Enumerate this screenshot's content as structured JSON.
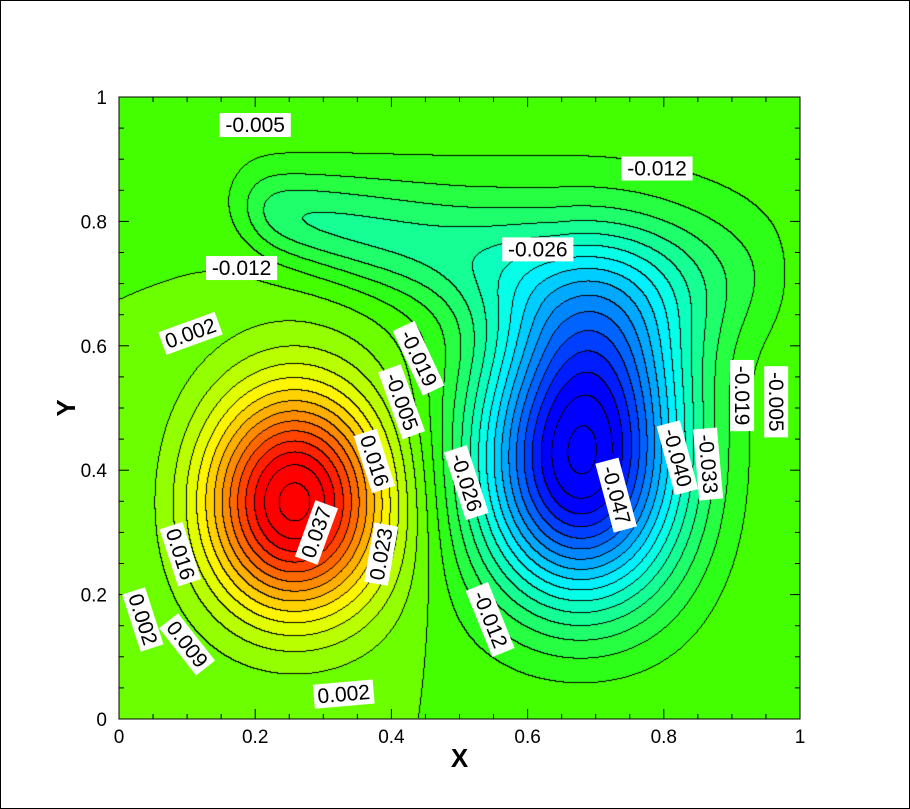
{
  "chart_data": {
    "type": "contour",
    "xlabel": "X",
    "ylabel": "Y",
    "xlim": [
      0,
      1
    ],
    "ylim": [
      0,
      1
    ],
    "x_ticks": [
      "0",
      "0.2",
      "0.4",
      "0.6",
      "0.8",
      "1"
    ],
    "y_ticks": [
      "0",
      "0.2",
      "0.4",
      "0.6",
      "0.8",
      "1"
    ],
    "colormap": [
      "#0000ff",
      "#00ffff",
      "#33ff00",
      "#ffff00",
      "#ff0000"
    ],
    "value_range": [
      -0.05,
      0.04
    ],
    "contour_step": 0.0035,
    "extrema": [
      {
        "kind": "max",
        "x": 0.245,
        "y": 0.335,
        "value": 0.037
      },
      {
        "kind": "min",
        "x": 0.69,
        "y": 0.39,
        "value": -0.047
      },
      {
        "kind": "tongue",
        "x": 0.19,
        "y": 0.825,
        "value": -0.022
      }
    ],
    "labels": [
      {
        "text": "-0.005",
        "x": 0.2,
        "y": 0.955,
        "angle": 0
      },
      {
        "text": "-0.012",
        "x": 0.79,
        "y": 0.885,
        "angle": 0
      },
      {
        "text": "-0.026",
        "x": 0.615,
        "y": 0.755,
        "angle": 0
      },
      {
        "text": "-0.012",
        "x": 0.18,
        "y": 0.725,
        "angle": 0
      },
      {
        "text": "0.002",
        "x": 0.105,
        "y": 0.62,
        "angle": -20
      },
      {
        "text": "-0.019",
        "x": 0.44,
        "y": 0.58,
        "angle": 65
      },
      {
        "text": "-0.005",
        "x": 0.415,
        "y": 0.51,
        "angle": 70
      },
      {
        "text": "0.016",
        "x": 0.375,
        "y": 0.415,
        "angle": 72
      },
      {
        "text": "-0.026",
        "x": 0.51,
        "y": 0.38,
        "angle": 72
      },
      {
        "text": "0.037",
        "x": 0.29,
        "y": 0.3,
        "angle": -70
      },
      {
        "text": "0.023",
        "x": 0.385,
        "y": 0.265,
        "angle": -80
      },
      {
        "text": "0.016",
        "x": 0.09,
        "y": 0.265,
        "angle": 72
      },
      {
        "text": "0.002",
        "x": 0.035,
        "y": 0.16,
        "angle": 72
      },
      {
        "text": "0.009",
        "x": 0.1,
        "y": 0.12,
        "angle": 52
      },
      {
        "text": "0.002",
        "x": 0.33,
        "y": 0.04,
        "angle": -5
      },
      {
        "text": "-0.012",
        "x": 0.545,
        "y": 0.16,
        "angle": 68
      },
      {
        "text": "-0.047",
        "x": 0.73,
        "y": 0.36,
        "angle": 75
      },
      {
        "text": "-0.040",
        "x": 0.82,
        "y": 0.42,
        "angle": 75
      },
      {
        "text": "-0.033",
        "x": 0.865,
        "y": 0.41,
        "angle": 85
      },
      {
        "text": "-0.019",
        "x": 0.915,
        "y": 0.52,
        "angle": 90
      },
      {
        "text": "-0.005",
        "x": 0.965,
        "y": 0.51,
        "angle": 90
      }
    ]
  }
}
